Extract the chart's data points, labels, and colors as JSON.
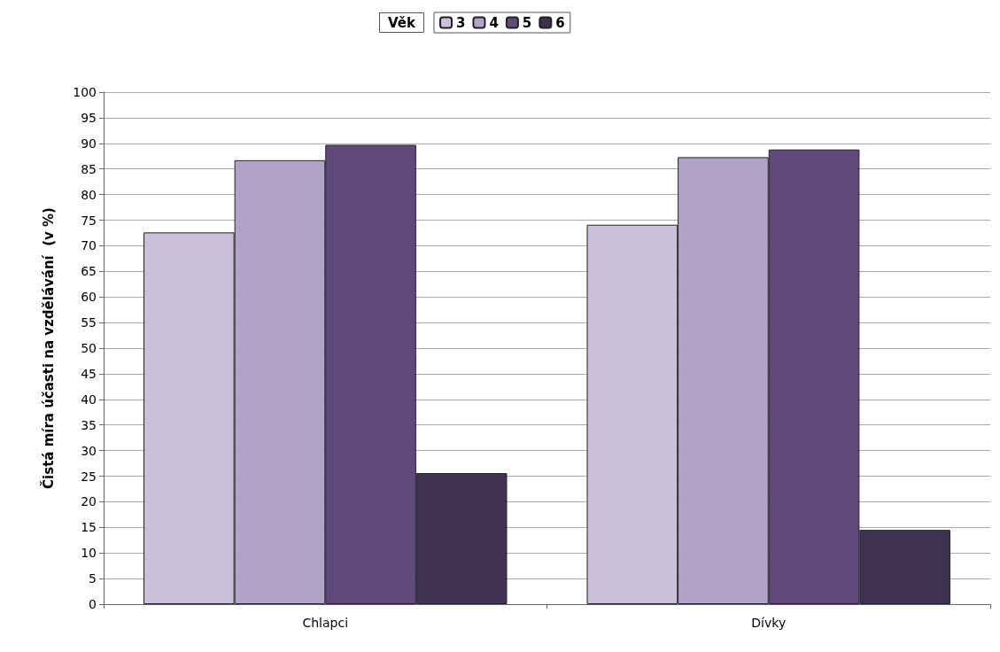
{
  "chart_data": {
    "type": "bar",
    "ylabel": "Čistá míra účasti na vzdělávání  (v %)",
    "legend_title": "Věk",
    "categories": [
      "Chlapci",
      "Dívky"
    ],
    "series": [
      {
        "name": "3",
        "color": "#cac0da",
        "values": [
          72.6,
          74.1
        ]
      },
      {
        "name": "4",
        "color": "#b1a2c7",
        "values": [
          86.7,
          87.3
        ]
      },
      {
        "name": "5",
        "color": "#604a7b",
        "values": [
          89.7,
          88.8
        ]
      },
      {
        "name": "6",
        "color": "#3f3151",
        "values": [
          25.6,
          14.5
        ]
      }
    ],
    "ylim": [
      0,
      100
    ],
    "yticks": [
      0,
      5,
      10,
      15,
      20,
      25,
      30,
      35,
      40,
      45,
      50,
      55,
      60,
      65,
      70,
      75,
      80,
      85,
      90,
      95,
      100
    ],
    "grid": "y",
    "legend": "top"
  }
}
